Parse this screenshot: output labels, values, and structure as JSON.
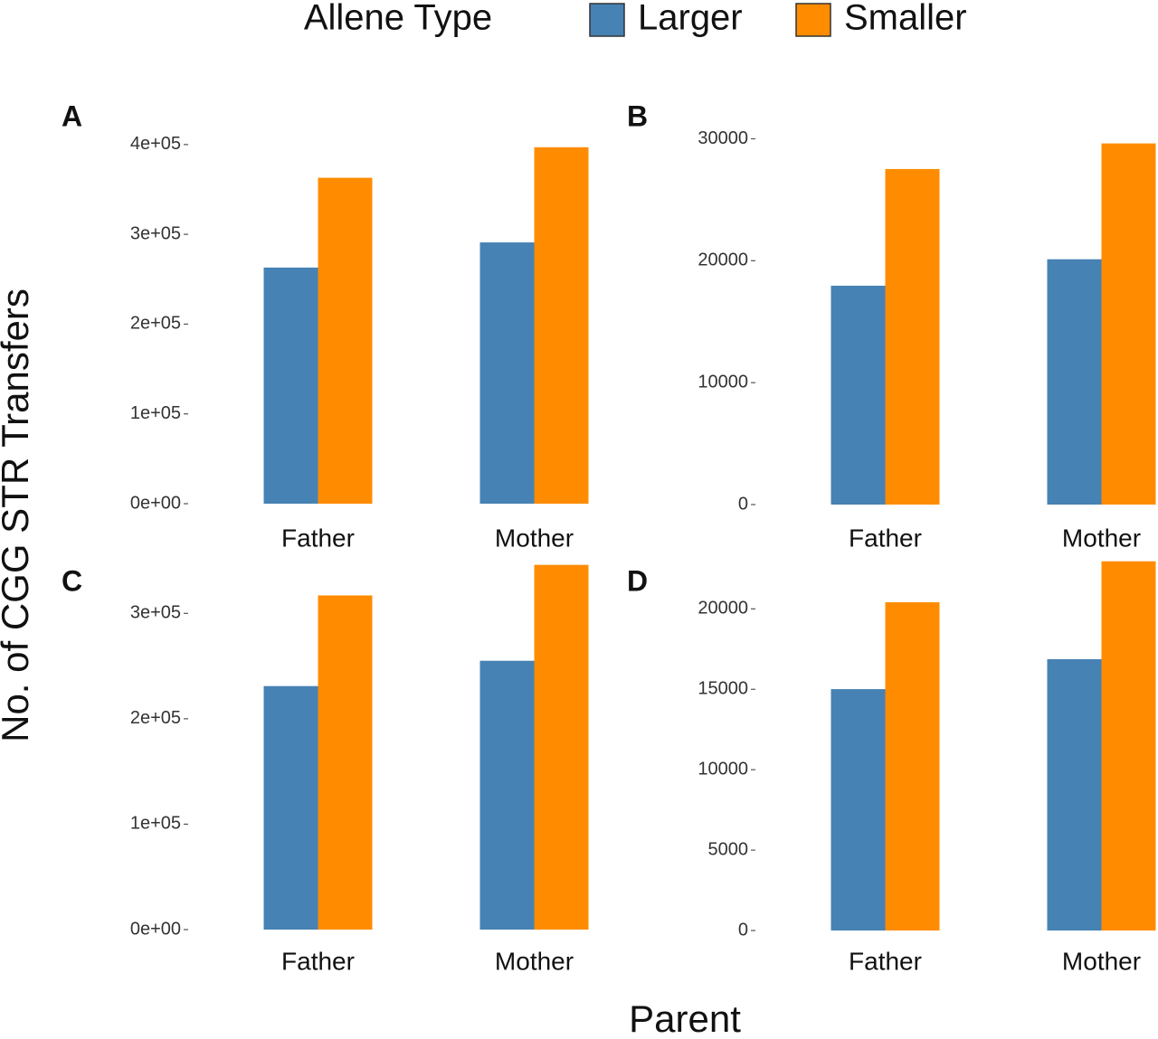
{
  "legend": {
    "title": "Allene Type",
    "entries": [
      {
        "name": "Larger",
        "color": "#4682b4"
      },
      {
        "name": "Smaller",
        "color": "#ff8c00"
      }
    ]
  },
  "y_label": "No. of CGG STR Transfers",
  "x_label": "Parent",
  "chart_data": [
    {
      "type": "bar",
      "panel": "A",
      "categories": [
        "Father",
        "Mother"
      ],
      "series": [
        {
          "values": [
            263000,
            291000
          ]
        },
        {
          "values": [
            363000,
            397000
          ]
        }
      ],
      "ylim": [
        0,
        420000
      ],
      "yticks": [
        {
          "value": 0,
          "label": "0e+00"
        },
        {
          "value": 100000,
          "label": "1e+05"
        },
        {
          "value": 200000,
          "label": "2e+05"
        },
        {
          "value": 300000,
          "label": "3e+05"
        },
        {
          "value": 400000,
          "label": "4e+05"
        }
      ]
    },
    {
      "type": "bar",
      "panel": "B",
      "categories": [
        "Father",
        "Mother"
      ],
      "series": [
        {
          "values": [
            17950,
            20120
          ]
        },
        {
          "values": [
            27520,
            29620
          ]
        }
      ],
      "ylim": [
        0,
        31000
      ],
      "yticks": [
        0,
        10000,
        20000,
        30000
      ]
    },
    {
      "type": "bar",
      "panel": "C",
      "categories": [
        "Father",
        "Mother"
      ],
      "series": [
        {
          "values": [
            231000,
            255000
          ]
        },
        {
          "values": [
            317000,
            346000
          ]
        }
      ],
      "ylim": [
        0,
        350000
      ],
      "yticks": [
        {
          "value": 0,
          "label": "0e+00"
        },
        {
          "value": 100000,
          "label": "1e+05"
        },
        {
          "value": 200000,
          "label": "2e+05"
        },
        {
          "value": 300000,
          "label": "3e+05"
        }
      ]
    },
    {
      "type": "bar",
      "panel": "D",
      "categories": [
        "Father",
        "Mother"
      ],
      "series": [
        {
          "values": [
            15010,
            16870
          ]
        },
        {
          "values": [
            20410,
            22960
          ]
        }
      ],
      "ylim": [
        0,
        23000
      ],
      "yticks": [
        0,
        5000,
        10000,
        15000,
        20000
      ]
    }
  ]
}
